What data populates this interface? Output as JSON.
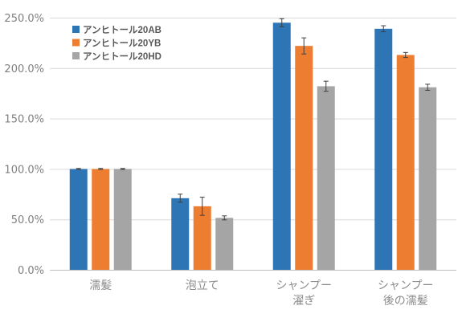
{
  "chart_data": {
    "type": "bar",
    "title": "",
    "xlabel": "",
    "ylabel": "",
    "ylim": [
      0,
      250
    ],
    "y_ticks": [
      "0.0%",
      "50.0%",
      "100.0%",
      "150.0%",
      "200.0%",
      "250.0%"
    ],
    "y_tick_values": [
      0,
      50,
      100,
      150,
      200,
      250
    ],
    "grid": true,
    "legend_position": "top-left",
    "categories": [
      [
        "濡髪"
      ],
      [
        "泡立て"
      ],
      [
        "シャンプー",
        "濯ぎ"
      ],
      [
        "シャンプー",
        "後の濡髪"
      ]
    ],
    "series": [
      {
        "name": "アンヒトール20AB",
        "color": "#2e75b6",
        "values": [
          100,
          71,
          245,
          239
        ],
        "errors": [
          0.5,
          4,
          4,
          3
        ]
      },
      {
        "name": "アンヒトール20YB",
        "color": "#ed7d31",
        "values": [
          100,
          63,
          222,
          213
        ],
        "errors": [
          0.5,
          9,
          8,
          2.5
        ]
      },
      {
        "name": "アンヒトール20HD",
        "color": "#a5a5a5",
        "values": [
          100,
          51.5,
          182,
          181
        ],
        "errors": [
          0.5,
          2,
          5,
          3
        ]
      }
    ]
  }
}
